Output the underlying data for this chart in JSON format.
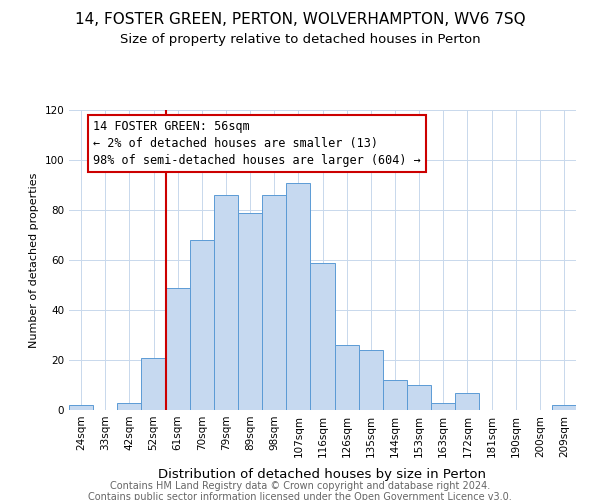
{
  "title": "14, FOSTER GREEN, PERTON, WOLVERHAMPTON, WV6 7SQ",
  "subtitle": "Size of property relative to detached houses in Perton",
  "xlabel": "Distribution of detached houses by size in Perton",
  "ylabel": "Number of detached properties",
  "bar_labels": [
    "24sqm",
    "33sqm",
    "42sqm",
    "52sqm",
    "61sqm",
    "70sqm",
    "79sqm",
    "89sqm",
    "98sqm",
    "107sqm",
    "116sqm",
    "126sqm",
    "135sqm",
    "144sqm",
    "153sqm",
    "163sqm",
    "172sqm",
    "181sqm",
    "190sqm",
    "200sqm",
    "209sqm"
  ],
  "bar_values": [
    2,
    0,
    3,
    21,
    49,
    68,
    86,
    79,
    86,
    91,
    59,
    26,
    24,
    12,
    10,
    3,
    7,
    0,
    0,
    0,
    2
  ],
  "bar_color": "#c6d9f0",
  "bar_edge_color": "#5b9bd5",
  "vline_x": 3.5,
  "vline_color": "#cc0000",
  "annotation_title": "14 FOSTER GREEN: 56sqm",
  "annotation_line1": "← 2% of detached houses are smaller (13)",
  "annotation_line2": "98% of semi-detached houses are larger (604) →",
  "annotation_box_edge": "#cc0000",
  "ylim": [
    0,
    120
  ],
  "yticks": [
    0,
    20,
    40,
    60,
    80,
    100,
    120
  ],
  "footer1": "Contains HM Land Registry data © Crown copyright and database right 2024.",
  "footer2": "Contains public sector information licensed under the Open Government Licence v3.0.",
  "background_color": "#ffffff",
  "grid_color": "#c8d8ec",
  "title_fontsize": 11,
  "subtitle_fontsize": 9.5,
  "xlabel_fontsize": 9.5,
  "ylabel_fontsize": 8,
  "tick_fontsize": 7.5,
  "footer_fontsize": 7,
  "annot_fontsize": 8.5
}
